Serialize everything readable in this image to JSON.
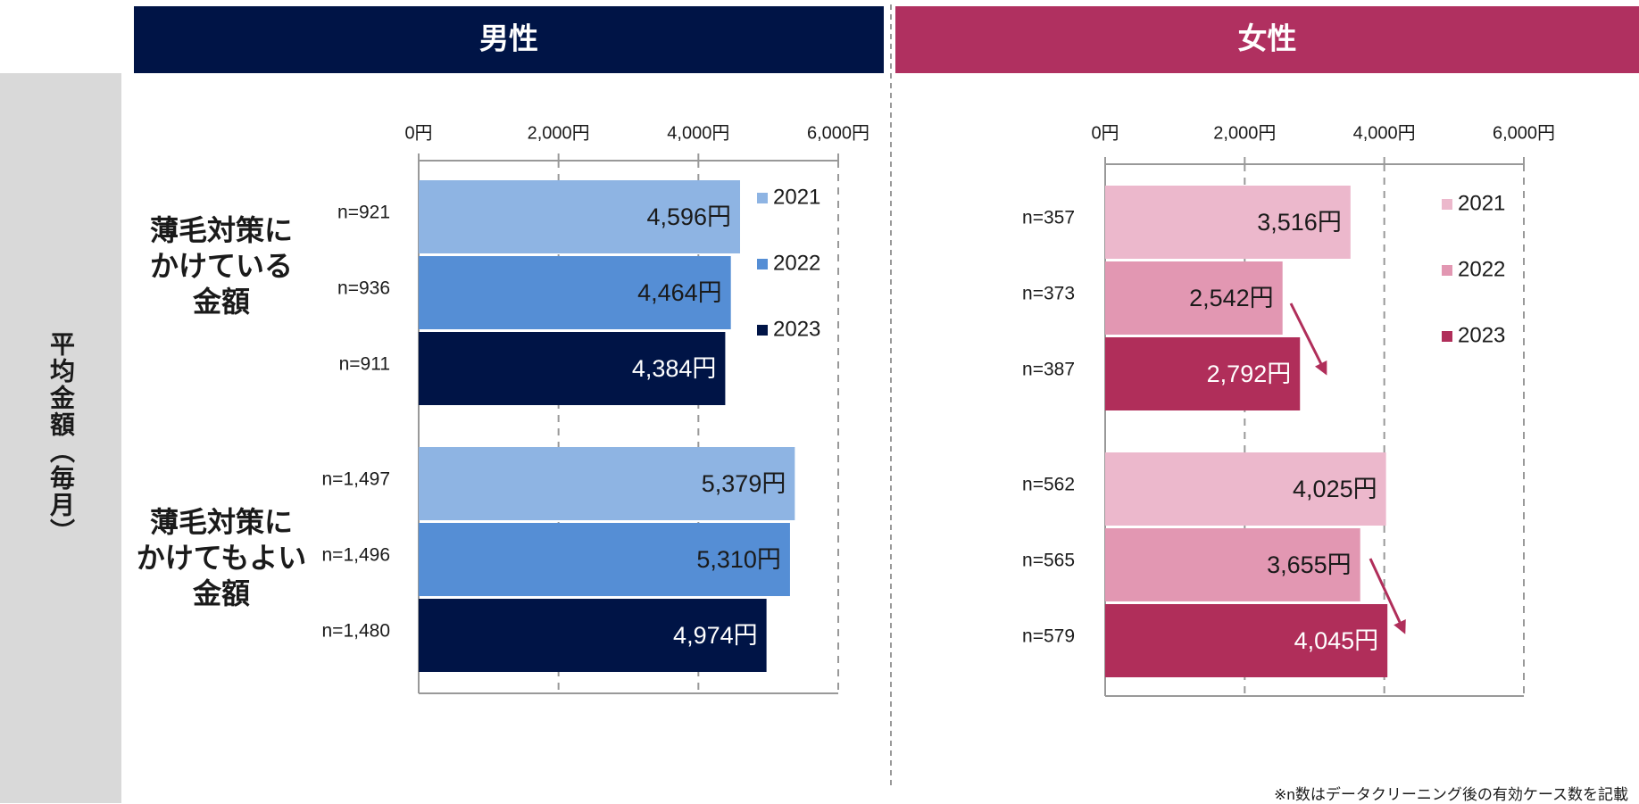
{
  "row_label": "平均金額（毎月）",
  "groups": [
    "薄毛対策に\nかけている\n金額",
    "薄毛対策に\nかけてもよい\n金額"
  ],
  "footnote": "※n数はデータクリーニング後の有効ケース数を記載",
  "chart_data": [
    {
      "type": "bar",
      "orientation": "horizontal",
      "title": "男性",
      "title_color": "#001446",
      "xlim": [
        0,
        6000
      ],
      "xticks": [
        {
          "value": 0,
          "label": "0円"
        },
        {
          "value": 2000,
          "label": "2,000円"
        },
        {
          "value": 4000,
          "label": "4,000円"
        },
        {
          "value": 6000,
          "label": "6,000円"
        }
      ],
      "grid": true,
      "legend": "right",
      "series": [
        {
          "name": "2021",
          "color": "#8eb4e3",
          "label_color": "#1a1a1a",
          "values": [
            4596,
            5379
          ],
          "value_labels": [
            "4,596円",
            "5,379円"
          ],
          "n": [
            "n=921",
            "n=1,497"
          ]
        },
        {
          "name": "2022",
          "color": "#558ed5",
          "label_color": "#1a1a1a",
          "values": [
            4464,
            5310
          ],
          "value_labels": [
            "4,464円",
            "5,310円"
          ],
          "n": [
            "n=936",
            "n=1,496"
          ]
        },
        {
          "name": "2023",
          "color": "#001446",
          "label_color": "#ffffff",
          "values": [
            4384,
            4974
          ],
          "value_labels": [
            "4,384円",
            "4,974円"
          ],
          "n": [
            "n=911",
            "n=1,480"
          ]
        }
      ]
    },
    {
      "type": "bar",
      "orientation": "horizontal",
      "title": "女性",
      "title_color": "#b03060",
      "xlim": [
        0,
        6000
      ],
      "xticks": [
        {
          "value": 0,
          "label": "0円"
        },
        {
          "value": 2000,
          "label": "2,000円"
        },
        {
          "value": 4000,
          "label": "4,000円"
        },
        {
          "value": 6000,
          "label": "6,000円"
        }
      ],
      "grid": true,
      "legend": "right",
      "series": [
        {
          "name": "2021",
          "color": "#ecb8cc",
          "label_color": "#1a1a1a",
          "values": [
            3516,
            4025
          ],
          "value_labels": [
            "3,516円",
            "4,025円"
          ],
          "n": [
            "n=357",
            "n=562"
          ]
        },
        {
          "name": "2022",
          "color": "#e297b2",
          "label_color": "#1a1a1a",
          "values": [
            2542,
            3655
          ],
          "value_labels": [
            "2,542円",
            "3,655円"
          ],
          "n": [
            "n=373",
            "n=565"
          ]
        },
        {
          "name": "2023",
          "color": "#b02e5a",
          "label_color": "#ffffff",
          "values": [
            2792,
            4045
          ],
          "value_labels": [
            "2,792円",
            "4,045円"
          ],
          "n": [
            "n=387",
            "n=579"
          ]
        }
      ]
    }
  ]
}
